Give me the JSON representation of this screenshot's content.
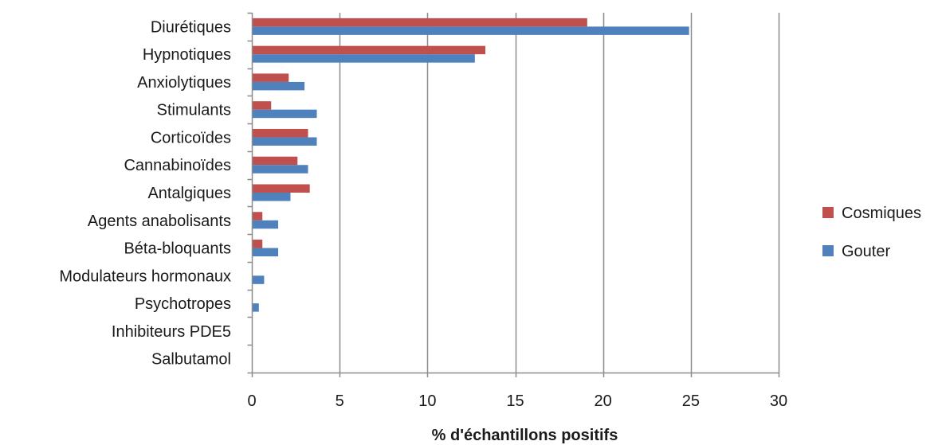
{
  "chart_data": {
    "type": "bar",
    "orientation": "horizontal",
    "categories": [
      "Diurétiques",
      "Hypnotiques",
      "Anxiolytiques",
      "Stimulants",
      "Corticoïdes",
      "Cannabinoïdes",
      "Antalgiques",
      "Agents anabolisants",
      "Béta-bloquants",
      "Modulateurs hormonaux",
      "Psychotropes",
      "Inhibiteurs PDE5",
      "Salbutamol"
    ],
    "series": [
      {
        "name": "Cosmiques",
        "color": "#C0504D",
        "values": [
          19.1,
          13.3,
          2.1,
          1.1,
          3.2,
          2.6,
          3.3,
          0.6,
          0.6,
          0,
          0,
          0,
          0
        ]
      },
      {
        "name": "Gouter",
        "color": "#4F81BD",
        "values": [
          24.9,
          12.7,
          3.0,
          3.7,
          3.7,
          3.2,
          2.2,
          1.5,
          1.5,
          0.7,
          0.4,
          0,
          0
        ]
      }
    ],
    "xlabel": "% d'échantillons positifs",
    "xlim": [
      0,
      30
    ],
    "xticks": [
      0,
      5,
      10,
      15,
      20,
      25,
      30
    ],
    "xtick_labels": [
      "0",
      "5",
      "10",
      "15",
      "20",
      "25",
      "30"
    ],
    "grid": "vertical",
    "gridline_color": "#8c8c8c",
    "legend_position": "right"
  }
}
